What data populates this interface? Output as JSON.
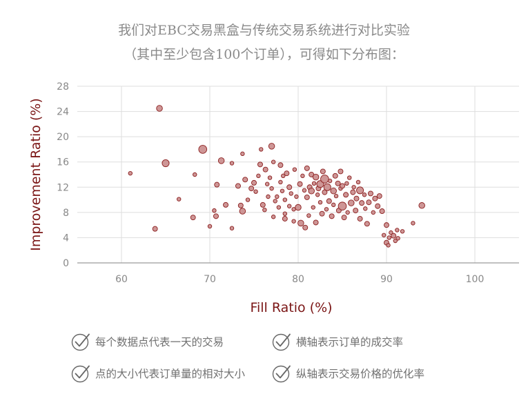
{
  "heading": {
    "line1": "我们对EBC交易黑盒与传统交易系统进行对比实验",
    "line2": "（其中至少包含100个订单），可得如下分布图："
  },
  "notes": [
    {
      "icon": "check-circle-icon",
      "text": "每个数据点代表一天的交易"
    },
    {
      "icon": "check-circle-icon",
      "text": "横轴表示订单的成交率"
    },
    {
      "icon": "check-circle-icon",
      "text": "点的大小代表订单量的相对大小"
    },
    {
      "icon": "check-circle-icon",
      "text": "纵轴表示交易价格的优化率"
    }
  ],
  "colors": {
    "marker_fill": "#c98b8b",
    "marker_stroke": "#8b1e1e",
    "axis_label": "#7a1515",
    "tick": "#888888",
    "grid": "#dddddd",
    "icon": "#666666"
  },
  "chart_data": {
    "type": "scatter",
    "xlabel": "Fill Ratio (%)",
    "ylabel": "Improvement Ratio (%)",
    "xlim": [
      55,
      105
    ],
    "ylim": [
      0,
      28
    ],
    "xticks": [
      60,
      70,
      80,
      90,
      100
    ],
    "yticks": [
      0,
      4,
      8,
      12,
      16,
      20,
      24,
      28
    ],
    "grid": true,
    "size_meaning": "relative order volume (1 = smallest, 4 = largest)",
    "points": [
      [
        64.3,
        24.5,
        2
      ],
      [
        69.2,
        18.0,
        3
      ],
      [
        65.0,
        15.8,
        2.5
      ],
      [
        61.0,
        14.2,
        1
      ],
      [
        68.3,
        14.0,
        1
      ],
      [
        66.5,
        10.1,
        1
      ],
      [
        68.1,
        7.2,
        1.5
      ],
      [
        63.8,
        5.4,
        1.5
      ],
      [
        70.0,
        5.8,
        1
      ],
      [
        70.8,
        12.4,
        1.5
      ],
      [
        71.3,
        16.2,
        2
      ],
      [
        70.5,
        8.3,
        1
      ],
      [
        70.7,
        7.4,
        1.5
      ],
      [
        71.8,
        9.2,
        1.5
      ],
      [
        72.5,
        5.5,
        1
      ],
      [
        72.5,
        15.8,
        1
      ],
      [
        73.2,
        12.2,
        1.5
      ],
      [
        73.5,
        9.1,
        1.5
      ],
      [
        73.7,
        8.2,
        2
      ],
      [
        73.7,
        17.3,
        1
      ],
      [
        74.0,
        13.2,
        1.5
      ],
      [
        74.3,
        10.0,
        1
      ],
      [
        74.7,
        11.8,
        1.5
      ],
      [
        75.0,
        12.7,
        1.5
      ],
      [
        75.2,
        11.3,
        1
      ],
      [
        75.5,
        13.8,
        1
      ],
      [
        75.7,
        15.6,
        1.5
      ],
      [
        75.8,
        18.0,
        1
      ],
      [
        76.0,
        9.2,
        1.5
      ],
      [
        76.2,
        8.4,
        1
      ],
      [
        76.3,
        14.8,
        1.5
      ],
      [
        76.5,
        12.5,
        1
      ],
      [
        76.6,
        10.5,
        1
      ],
      [
        76.8,
        13.5,
        1
      ],
      [
        77.0,
        11.8,
        1
      ],
      [
        77.0,
        18.5,
        2
      ],
      [
        77.2,
        7.3,
        1
      ],
      [
        77.2,
        16.0,
        1
      ],
      [
        77.4,
        9.8,
        1
      ],
      [
        77.6,
        10.5,
        1
      ],
      [
        77.8,
        8.8,
        1
      ],
      [
        78.0,
        15.5,
        1.5
      ],
      [
        78.0,
        12.8,
        1
      ],
      [
        78.2,
        11.4,
        1
      ],
      [
        78.3,
        13.8,
        1
      ],
      [
        78.5,
        7.0,
        1.5
      ],
      [
        78.5,
        7.8,
        1
      ],
      [
        78.5,
        10.0,
        1
      ],
      [
        78.7,
        14.2,
        1.5
      ],
      [
        79.0,
        9.0,
        1
      ],
      [
        79.0,
        12.0,
        1.5
      ],
      [
        79.2,
        11.0,
        1
      ],
      [
        79.5,
        8.5,
        1
      ],
      [
        79.5,
        6.6,
        1
      ],
      [
        79.6,
        14.8,
        1
      ],
      [
        79.8,
        10.5,
        1
      ],
      [
        80.0,
        8.8,
        2
      ],
      [
        80.2,
        12.5,
        1.5
      ],
      [
        80.3,
        6.3,
        2
      ],
      [
        80.5,
        13.8,
        1
      ],
      [
        80.7,
        11.5,
        1
      ],
      [
        80.8,
        5.6,
        1.5
      ],
      [
        81.0,
        10.4,
        1.5
      ],
      [
        81.0,
        15.0,
        1.5
      ],
      [
        81.2,
        7.5,
        1
      ],
      [
        81.3,
        12.0,
        1.5
      ],
      [
        81.5,
        11.4,
        2
      ],
      [
        81.5,
        14.0,
        1.5
      ],
      [
        81.7,
        8.8,
        1
      ],
      [
        81.8,
        12.6,
        1
      ],
      [
        82.0,
        13.6,
        2
      ],
      [
        82.0,
        6.4,
        1.5
      ],
      [
        82.2,
        10.8,
        1
      ],
      [
        82.3,
        11.8,
        1.5
      ],
      [
        82.5,
        12.5,
        2.5
      ],
      [
        82.5,
        9.6,
        1
      ],
      [
        82.7,
        7.8,
        1.5
      ],
      [
        82.8,
        14.5,
        1.5
      ],
      [
        83.0,
        13.3,
        3
      ],
      [
        83.0,
        11.2,
        1.5
      ],
      [
        83.2,
        8.5,
        1
      ],
      [
        83.3,
        12.0,
        2.5
      ],
      [
        83.5,
        9.8,
        1.5
      ],
      [
        83.6,
        13.0,
        1
      ],
      [
        83.8,
        7.4,
        1.5
      ],
      [
        84.0,
        11.4,
        2
      ],
      [
        84.0,
        9.2,
        1
      ],
      [
        84.2,
        13.8,
        1.5
      ],
      [
        84.3,
        10.6,
        1
      ],
      [
        84.5,
        12.6,
        1.5
      ],
      [
        84.6,
        8.3,
        1.5
      ],
      [
        84.8,
        11.8,
        1
      ],
      [
        84.8,
        14.5,
        1.5
      ],
      [
        85.0,
        9.0,
        3
      ],
      [
        85.0,
        12.2,
        1.5
      ],
      [
        85.2,
        7.2,
        1.5
      ],
      [
        85.4,
        10.8,
        1.5
      ],
      [
        85.5,
        12.6,
        1
      ],
      [
        85.6,
        8.0,
        1
      ],
      [
        85.8,
        13.5,
        1
      ],
      [
        86.0,
        9.5,
        2
      ],
      [
        86.2,
        11.2,
        1.5
      ],
      [
        86.3,
        12.0,
        1
      ],
      [
        86.5,
        8.3,
        1.5
      ],
      [
        86.6,
        10.2,
        1.5
      ],
      [
        86.8,
        12.8,
        1
      ],
      [
        87.0,
        7.0,
        1.5
      ],
      [
        87.0,
        11.5,
        2.5
      ],
      [
        87.2,
        9.5,
        1.5
      ],
      [
        87.5,
        10.8,
        1
      ],
      [
        87.6,
        8.6,
        1
      ],
      [
        87.8,
        6.2,
        1.5
      ],
      [
        88.0,
        9.6,
        1.5
      ],
      [
        88.2,
        11.0,
        1.5
      ],
      [
        88.5,
        8.0,
        1
      ],
      [
        88.7,
        10.2,
        1.5
      ],
      [
        89.0,
        9.0,
        1.5
      ],
      [
        89.2,
        10.6,
        1.5
      ],
      [
        89.5,
        8.2,
        1.5
      ],
      [
        89.7,
        4.4,
        1
      ],
      [
        90.0,
        6.0,
        1.5
      ],
      [
        90.0,
        3.2,
        1.5
      ],
      [
        90.2,
        2.8,
        1
      ],
      [
        90.3,
        4.0,
        1
      ],
      [
        90.5,
        4.8,
        1
      ],
      [
        90.8,
        4.3,
        1.5
      ],
      [
        91.0,
        3.5,
        1
      ],
      [
        91.3,
        3.9,
        1
      ],
      [
        91.2,
        5.2,
        1
      ],
      [
        91.8,
        5.0,
        1
      ],
      [
        93.0,
        6.3,
        1
      ],
      [
        94.0,
        9.1,
        2
      ]
    ]
  }
}
